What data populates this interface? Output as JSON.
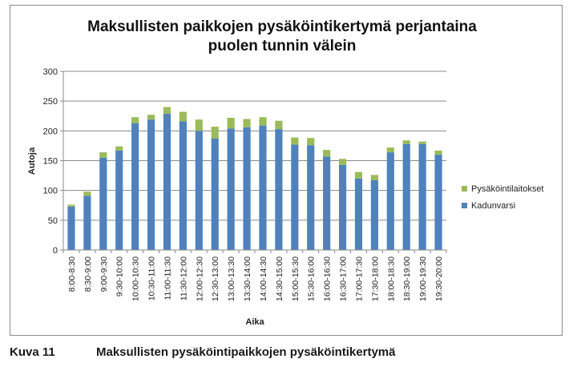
{
  "chart_data": {
    "type": "bar",
    "stacked": true,
    "title": "Maksullisten paikkojen pysäköintikertymä perjantaina puolen tunnin välein",
    "title_lines": [
      "Maksullisten paikkojen pysäköintikertymä perjantaina",
      "puolen tunnin välein"
    ],
    "xlabel": "Aika",
    "ylabel": "Autoja",
    "ylim": [
      0,
      300
    ],
    "yticks": [
      0,
      50,
      100,
      150,
      200,
      250,
      300
    ],
    "grid": true,
    "legend_position": "right",
    "categories": [
      "8:00-8:30",
      "8:30-9:00",
      "9:00-9:30",
      "9:30-10:00",
      "10:00-10:30",
      "10:30-11:00",
      "11:00-11:30",
      "11:30-12:00",
      "12:00-12:30",
      "12:30-13:00",
      "13:00-13:30",
      "13:30-14:00",
      "14:00-14:30",
      "14:30-15:00",
      "15:00-15:30",
      "15:30-16:00",
      "16:00-16:30",
      "16:30-17:00",
      "17:00-17:30",
      "17:30-18:00",
      "18:00-18:30",
      "18:30-19:00",
      "19:00-19:30",
      "19:30-20:00"
    ],
    "series": [
      {
        "name": "Kadunvarsi",
        "color": "#4f81bd",
        "values": [
          73,
          91,
          155,
          167,
          213,
          219,
          229,
          216,
          200,
          187,
          204,
          206,
          209,
          203,
          177,
          176,
          157,
          143,
          120,
          117,
          164,
          178,
          178,
          160
        ]
      },
      {
        "name": "Pysäköintilaitokset",
        "color": "#9bbb59",
        "values": [
          3,
          7,
          9,
          7,
          10,
          8,
          11,
          16,
          19,
          20,
          18,
          14,
          14,
          14,
          12,
          12,
          11,
          10,
          11,
          9,
          8,
          6,
          4,
          7
        ]
      }
    ]
  },
  "caption": {
    "label": "Kuva 11",
    "text": "Maksullisten pysäköintipaikkojen pysäköintikertymä"
  }
}
